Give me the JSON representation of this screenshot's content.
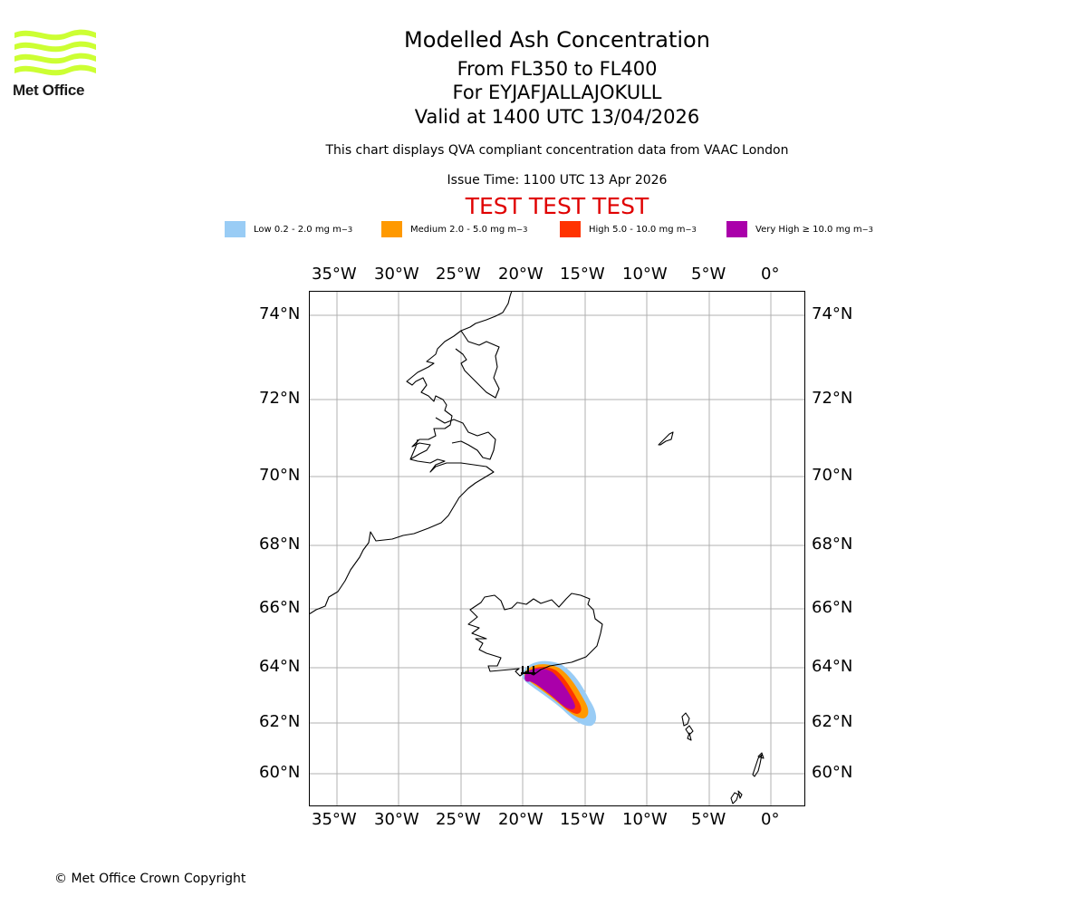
{
  "brand": {
    "name": "Met Office",
    "color": "#ccff33"
  },
  "header": {
    "title": "Modelled Ash Concentration",
    "levels": "From FL350 to FL400",
    "volcano": "For EYJAFJALLAJOKULL",
    "valid": "Valid at 1400 UTC 13/04/2026",
    "note": "This chart displays QVA compliant concentration data from VAAC London",
    "issue": "Issue Time: 1100 UTC 13 Apr 2026",
    "test_banner": "TEST TEST TEST"
  },
  "legend": [
    {
      "label": "Low 0.2 - 2.0 mg m",
      "color": "#99ccf5"
    },
    {
      "label": "Medium 2.0 - 5.0 mg m",
      "color": "#ff9900"
    },
    {
      "label": "High 5.0 - 10.0 mg m",
      "color": "#ff3300"
    },
    {
      "label": "Very High ≥ 10.0 mg m",
      "color": "#aa00aa"
    }
  ],
  "legend_unit_exp": "−3",
  "axes": {
    "lon_ticks": [
      "35°W",
      "30°W",
      "25°W",
      "20°W",
      "15°W",
      "10°W",
      "5°W",
      "0°"
    ],
    "lat_ticks": [
      "74°N",
      "72°N",
      "70°N",
      "68°N",
      "66°N",
      "64°N",
      "62°N",
      "60°N"
    ]
  },
  "footer": {
    "copyright": "© Met Office Crown Copyright"
  }
}
